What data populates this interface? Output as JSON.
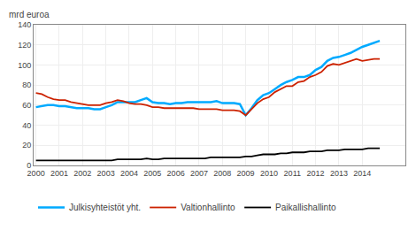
{
  "chart_data": {
    "type": "line",
    "ylabel": "mrd euroa",
    "x": [
      2000,
      2000.25,
      2000.5,
      2000.75,
      2001,
      2001.25,
      2001.5,
      2001.75,
      2002,
      2002.25,
      2002.5,
      2002.75,
      2003,
      2003.25,
      2003.5,
      2003.75,
      2004,
      2004.25,
      2004.5,
      2004.75,
      2005,
      2005.25,
      2005.5,
      2005.75,
      2006,
      2006.25,
      2006.5,
      2006.75,
      2007,
      2007.25,
      2007.5,
      2007.75,
      2008,
      2008.25,
      2008.5,
      2008.75,
      2009,
      2009.25,
      2009.5,
      2009.75,
      2010,
      2010.25,
      2010.5,
      2010.75,
      2011,
      2011.25,
      2011.5,
      2011.75,
      2012,
      2012.25,
      2012.5,
      2012.75,
      2013,
      2013.25,
      2013.5,
      2013.75,
      2014,
      2014.25,
      2014.5,
      2014.75
    ],
    "series": [
      {
        "name": "Julkisyhteistöt yht.",
        "color": "#00aaff",
        "values": [
          58,
          59,
          60,
          60,
          59,
          59,
          58,
          57,
          57,
          57,
          56,
          56,
          58,
          60,
          63,
          63,
          63,
          63,
          65,
          67,
          63,
          62,
          62,
          61,
          62,
          62,
          63,
          63,
          63,
          63,
          63,
          64,
          62,
          62,
          62,
          61,
          50,
          57,
          65,
          70,
          72,
          76,
          80,
          83,
          85,
          88,
          88,
          90,
          95,
          98,
          104,
          107,
          108,
          110,
          112,
          115,
          118,
          120,
          122,
          124
        ]
      },
      {
        "name": "Valtionhallinto",
        "color": "#cc2200",
        "values": [
          72,
          71,
          68,
          66,
          65,
          65,
          63,
          62,
          61,
          60,
          60,
          60,
          62,
          63,
          65,
          64,
          62,
          61,
          61,
          60,
          58,
          58,
          57,
          57,
          57,
          57,
          57,
          57,
          56,
          56,
          56,
          56,
          55,
          55,
          55,
          54,
          50,
          56,
          62,
          66,
          68,
          73,
          76,
          79,
          79,
          83,
          84,
          88,
          90,
          93,
          99,
          101,
          100,
          102,
          104,
          106,
          104,
          105,
          106,
          106
        ]
      },
      {
        "name": "Paikallishallinto",
        "color": "#000000",
        "values": [
          5,
          5,
          5,
          5,
          5,
          5,
          5,
          5,
          5,
          5,
          5,
          5,
          5,
          5,
          6,
          6,
          6,
          6,
          6,
          7,
          6,
          6,
          7,
          7,
          7,
          7,
          7,
          7,
          7,
          7,
          8,
          8,
          8,
          8,
          8,
          8,
          9,
          9,
          10,
          11,
          11,
          11,
          12,
          12,
          13,
          13,
          13,
          14,
          14,
          14,
          15,
          15,
          15,
          16,
          16,
          16,
          16,
          17,
          17,
          17
        ]
      }
    ],
    "xlim": [
      1999.9,
      2015.85
    ],
    "xticks": [
      2000,
      2001,
      2002,
      2003,
      2004,
      2005,
      2006,
      2007,
      2008,
      2009,
      2010,
      2011,
      2012,
      2013,
      2014
    ],
    "ylim": [
      0,
      140
    ],
    "yticks": [
      0,
      20,
      40,
      60,
      80,
      100,
      120,
      140
    ],
    "grid": true
  }
}
